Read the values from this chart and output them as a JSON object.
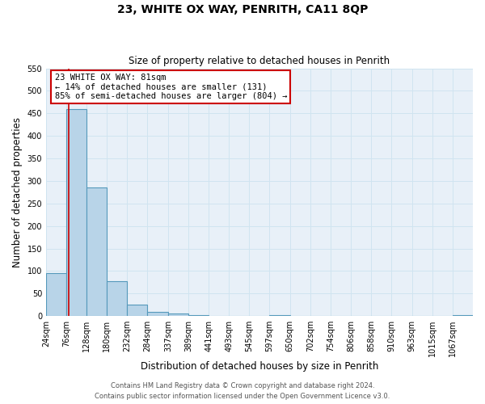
{
  "title": "23, WHITE OX WAY, PENRITH, CA11 8QP",
  "subtitle": "Size of property relative to detached houses in Penrith",
  "xlabel": "Distribution of detached houses by size in Penrith",
  "ylabel": "Number of detached properties",
  "bin_labels": [
    "24sqm",
    "76sqm",
    "128sqm",
    "180sqm",
    "232sqm",
    "284sqm",
    "337sqm",
    "389sqm",
    "441sqm",
    "493sqm",
    "545sqm",
    "597sqm",
    "650sqm",
    "702sqm",
    "754sqm",
    "806sqm",
    "858sqm",
    "910sqm",
    "963sqm",
    "1015sqm",
    "1067sqm"
  ],
  "bar_values": [
    95,
    460,
    285,
    77,
    25,
    10,
    5,
    3,
    0,
    0,
    0,
    2,
    0,
    0,
    0,
    0,
    0,
    0,
    0,
    0,
    3
  ],
  "bar_color": "#b8d4e8",
  "bar_edge_color": "#5599bb",
  "bar_edge_width": 0.8,
  "bin_edges": [
    24,
    76,
    128,
    180,
    232,
    284,
    337,
    389,
    441,
    493,
    545,
    597,
    650,
    702,
    754,
    806,
    858,
    910,
    963,
    1015,
    1067,
    1119
  ],
  "vline_color": "#cc0000",
  "vline_x_sqm": 81,
  "annotation_box_text": "23 WHITE OX WAY: 81sqm\n← 14% of detached houses are smaller (131)\n85% of semi-detached houses are larger (804) →",
  "annotation_box_edge_color": "#cc0000",
  "annotation_box_facecolor": "white",
  "ylim": [
    0,
    550
  ],
  "yticks": [
    0,
    50,
    100,
    150,
    200,
    250,
    300,
    350,
    400,
    450,
    500,
    550
  ],
  "grid_color": "#d0e4f0",
  "bg_color": "#e8f0f8",
  "footer_line1": "Contains HM Land Registry data © Crown copyright and database right 2024.",
  "footer_line2": "Contains public sector information licensed under the Open Government Licence v3.0.",
  "title_fontsize": 10,
  "subtitle_fontsize": 8.5,
  "xlabel_fontsize": 8.5,
  "ylabel_fontsize": 8.5,
  "tick_fontsize": 7,
  "annotation_fontsize": 7.5,
  "footer_fontsize": 6.0
}
